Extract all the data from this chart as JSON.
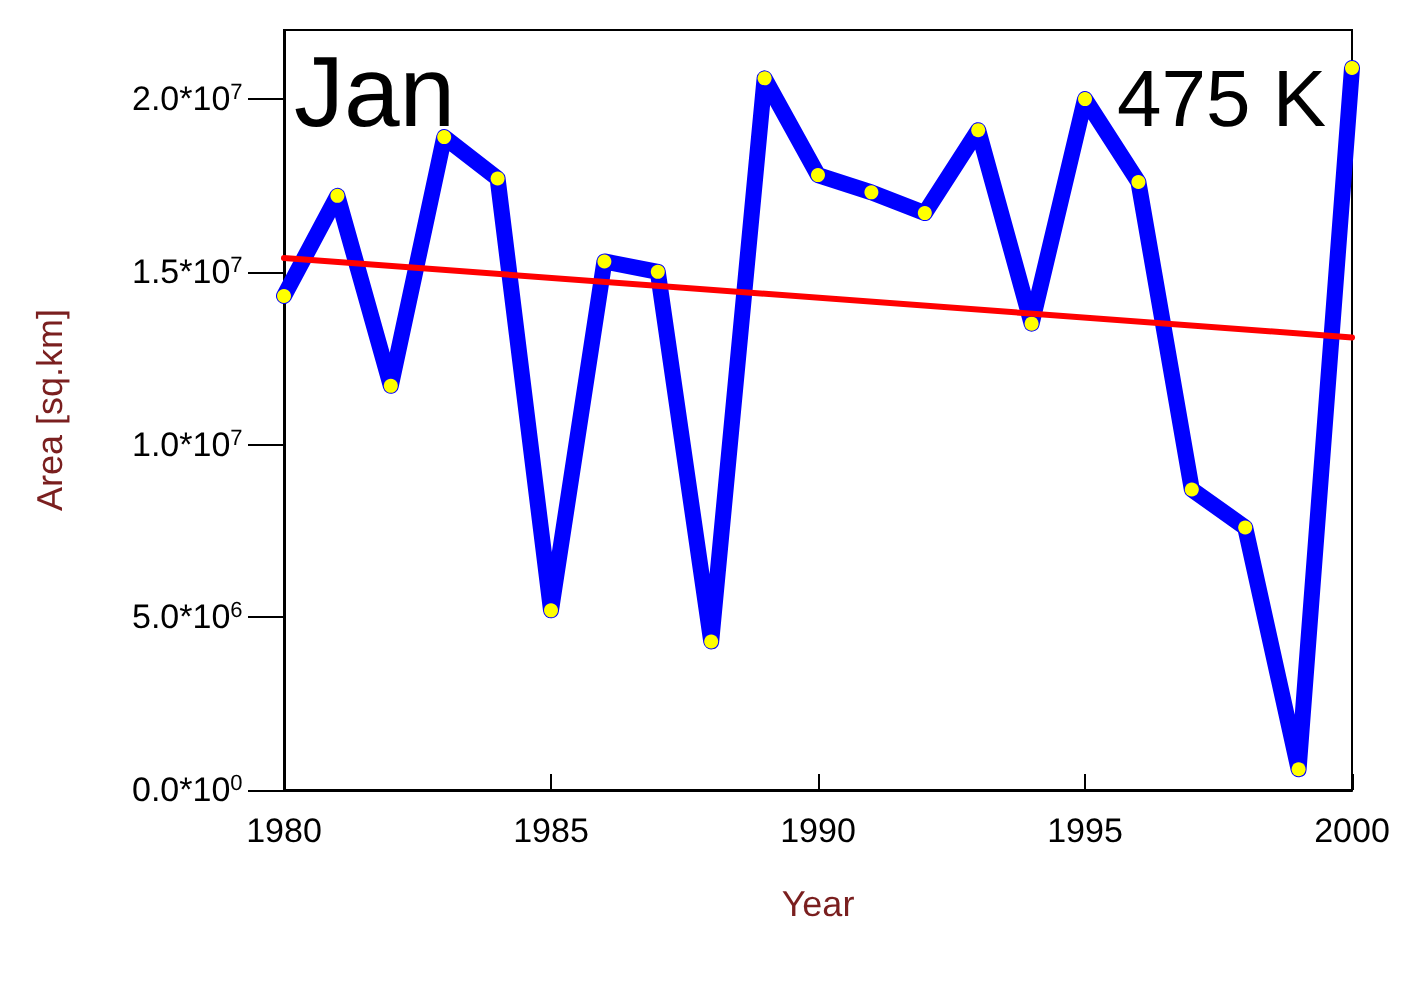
{
  "chart_data": {
    "type": "line",
    "title": "Jan",
    "xlabel": "Year",
    "ylabel": "Area [sq.km]",
    "annotations": [
      "475 K"
    ],
    "x": [
      1980,
      1981,
      1982,
      1983,
      1984,
      1985,
      1986,
      1987,
      1988,
      1989,
      1990,
      1991,
      1992,
      1993,
      1994,
      1995,
      1996,
      1997,
      1998,
      1999,
      2000
    ],
    "series": [
      {
        "color": "#0000ff",
        "marker": "circle",
        "values": [
          14300000,
          17200000,
          11700000,
          18900000,
          17700000,
          5200000,
          15300000,
          15000000,
          4300000,
          20600000,
          17800000,
          17300000,
          16700000,
          19100000,
          13500000,
          20000000,
          17600000,
          8700000,
          7600000,
          600000,
          20900000
        ]
      },
      {
        "color": "#ff0000",
        "marker": "none",
        "x": [
          1980,
          2000
        ],
        "values": [
          15400000,
          13100000
        ]
      }
    ],
    "xlim": [
      1980,
      2000
    ],
    "xticks": [
      1980,
      1985,
      1990,
      1995,
      2000
    ],
    "ylim": [
      0,
      22000000
    ],
    "yticks": [
      {
        "value": 0,
        "label": "0.0*10$^{0}$"
      },
      {
        "value": 5000000,
        "label": "5.0*10$^{6}$"
      },
      {
        "value": 10000000,
        "label": "1.0*10$^{7}$"
      },
      {
        "value": 15000000,
        "label": "1.5*10$^{7}$"
      },
      {
        "value": 20000000,
        "label": "2.0*10$^{7}$"
      }
    ],
    "grid": false
  }
}
